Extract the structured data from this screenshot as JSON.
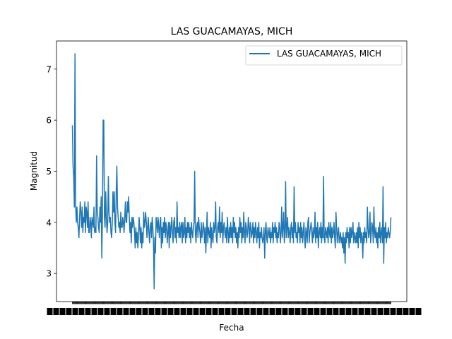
{
  "chart_data": {
    "type": "line",
    "title": "LAS GUACAMAYAS, MICH",
    "xlabel": "Fecha",
    "ylabel": "Magnitud",
    "ylim": [
      2.45,
      7.55
    ],
    "yticks": [
      3,
      4,
      5,
      6,
      7
    ],
    "grid": false,
    "legend_placement": "top-right",
    "series_color": "#1f77b4",
    "x_tick_labels_note": "x-axis tick labels are dense overlapping date strings (unreadable)",
    "series": [
      {
        "name": "LAS GUACAMAYAS, MICH",
        "values": [
          5.9,
          5.1,
          4.9,
          4.3,
          7.3,
          4.3,
          4.0,
          4.3,
          4.0,
          3.9,
          3.7,
          4.1,
          4.4,
          4.2,
          3.9,
          4.3,
          3.8,
          4.1,
          4.0,
          4.4,
          3.8,
          4.3,
          4.2,
          3.9,
          4.4,
          3.8,
          3.8,
          4.1,
          4.0,
          3.7,
          4.1,
          4.0,
          3.9,
          4.3,
          3.8,
          3.9,
          3.8,
          5.3,
          4.2,
          4.1,
          3.9,
          3.8,
          4.3,
          4.0,
          4.5,
          3.3,
          4.2,
          6.0,
          6.0,
          4.1,
          3.9,
          4.6,
          4.1,
          3.8,
          4.0,
          4.9,
          4.2,
          4.0,
          4.1,
          3.8,
          3.7,
          4.0,
          4.6,
          4.2,
          4.6,
          4.0,
          3.8,
          4.6,
          5.1,
          4.3,
          4.1,
          3.9,
          4.0,
          3.8,
          4.2,
          3.9,
          3.9,
          4.1,
          4.0,
          3.8,
          4.1,
          4.4,
          4.0,
          4.0,
          4.4,
          4.2,
          4.5,
          4.1,
          3.8,
          4.0,
          3.6,
          4.1,
          3.9,
          4.1,
          4.0,
          3.8,
          3.5,
          3.9,
          3.6,
          3.8,
          3.5,
          3.7,
          4.1,
          3.9,
          3.6,
          3.9,
          3.5,
          3.8,
          3.6,
          4.2,
          3.9,
          4.0,
          4.2,
          4.0,
          3.7,
          3.9,
          4.1,
          3.8,
          3.6,
          3.9,
          4.0,
          3.7,
          4.1,
          3.9,
          3.6,
          2.7,
          3.7,
          3.4,
          4.1,
          4.0,
          3.8,
          4.1,
          3.9,
          3.7,
          4.0,
          4.1,
          3.5,
          3.9,
          3.6,
          4.0,
          3.8,
          4.1,
          3.7,
          4.0,
          3.9,
          3.6,
          3.8,
          4.0,
          3.5,
          4.0,
          3.7,
          3.9,
          4.1,
          3.8,
          3.6,
          4.0,
          4.1,
          3.7,
          3.9,
          3.6,
          4.4,
          3.8,
          3.9,
          3.7,
          4.0,
          3.7,
          3.9,
          4.0,
          3.6,
          4.0,
          3.7,
          3.8,
          4.1,
          3.6,
          3.9,
          3.7,
          4.0,
          3.8,
          4.0,
          3.7,
          3.9,
          3.6,
          4.0,
          3.8,
          3.7,
          3.9,
          4.0,
          5.0,
          3.8,
          3.6,
          3.9,
          4.0,
          3.7,
          4.1,
          3.9,
          3.8,
          3.6,
          4.0,
          3.7,
          3.8,
          4.0,
          3.9,
          3.6,
          3.9,
          3.4,
          3.8,
          4.2,
          3.6,
          3.9,
          3.8,
          3.7,
          4.0,
          3.5,
          3.9,
          3.7,
          3.6,
          4.0,
          3.8,
          3.9,
          4.4,
          3.7,
          3.6,
          3.9,
          4.0,
          3.8,
          4.3,
          3.7,
          4.0,
          3.8,
          4.2,
          3.6,
          3.9,
          4.0,
          3.8,
          3.7,
          3.9,
          3.6,
          4.1,
          3.8,
          3.6,
          3.9,
          3.7,
          4.0,
          3.7,
          3.9,
          3.6,
          4.1,
          3.8,
          4.0,
          3.7,
          3.9,
          3.6,
          3.8,
          3.5,
          3.9,
          3.7,
          4.1,
          3.8,
          4.0,
          3.6,
          3.9,
          3.7,
          4.2,
          3.8,
          3.6,
          4.0,
          3.9,
          3.7,
          3.8,
          4.1,
          3.9,
          3.6,
          4.0,
          3.9,
          3.7,
          3.8,
          4.0,
          3.6,
          3.9,
          3.7,
          4.0,
          3.8,
          3.6,
          3.9,
          3.7,
          4.0,
          3.5,
          3.8,
          3.7,
          3.9,
          3.7,
          3.6,
          3.7,
          3.9,
          3.3,
          3.8,
          4.0,
          3.7,
          3.6,
          3.9,
          3.8,
          3.7,
          3.9,
          3.6,
          3.8,
          3.7,
          4.0,
          3.6,
          3.9,
          3.8,
          4.0,
          3.7,
          3.9,
          3.6,
          3.8,
          3.7,
          4.0,
          3.9,
          3.6,
          3.8,
          4.3,
          3.7,
          3.9,
          4.2,
          3.6,
          3.8,
          4.8,
          3.7,
          3.9,
          4.1,
          3.7,
          3.9,
          3.8,
          3.6,
          3.9,
          4.0,
          3.7,
          3.9,
          3.6,
          4.7,
          3.8,
          4.0,
          3.7,
          3.8,
          3.6,
          4.0,
          3.8,
          3.9,
          3.6,
          4.0,
          3.7,
          3.9,
          3.6,
          3.8,
          4.0,
          3.7,
          3.5,
          3.9,
          3.8,
          3.6,
          4.0,
          4.1,
          3.6,
          3.8,
          3.9,
          4.0,
          3.8,
          3.6,
          3.9,
          3.7,
          3.8,
          4.2,
          3.6,
          3.9,
          3.7,
          4.0,
          3.5,
          3.8,
          3.9,
          3.7,
          4.0,
          3.6,
          3.9,
          3.7,
          4.9,
          3.7,
          3.6,
          3.9,
          3.8,
          3.7,
          3.9,
          3.6,
          4.0,
          3.8,
          3.7,
          4.0,
          3.6,
          3.9,
          3.7,
          3.8,
          4.0,
          3.7,
          3.5,
          4.2,
          3.9,
          3.6,
          3.8,
          3.9,
          3.6,
          3.7,
          3.8,
          3.6,
          3.7,
          3.5,
          3.8,
          3.4,
          3.7,
          3.2,
          3.8,
          3.6,
          3.9,
          3.7,
          3.8,
          3.5,
          3.9,
          3.6,
          3.9,
          3.7,
          3.8,
          4.0,
          3.6,
          3.8,
          3.7,
          3.6,
          3.8,
          3.6,
          3.9,
          3.5,
          4.0,
          3.7,
          3.9,
          3.6,
          3.8,
          3.7,
          3.3,
          3.8,
          3.6,
          3.9,
          3.7,
          3.8,
          3.6,
          4.3,
          3.9,
          3.7,
          3.8,
          4.2,
          3.6,
          3.8,
          4.0,
          3.9,
          3.6,
          4.3,
          3.8,
          3.7,
          3.9,
          3.6,
          3.8,
          3.5,
          3.9,
          3.7,
          4.0,
          3.6,
          3.8,
          3.9,
          3.6,
          4.7,
          3.2,
          3.9,
          3.7,
          4.0,
          3.6,
          3.8,
          3.7,
          3.9,
          3.8,
          3.7,
          3.8,
          4.1
        ]
      }
    ]
  }
}
